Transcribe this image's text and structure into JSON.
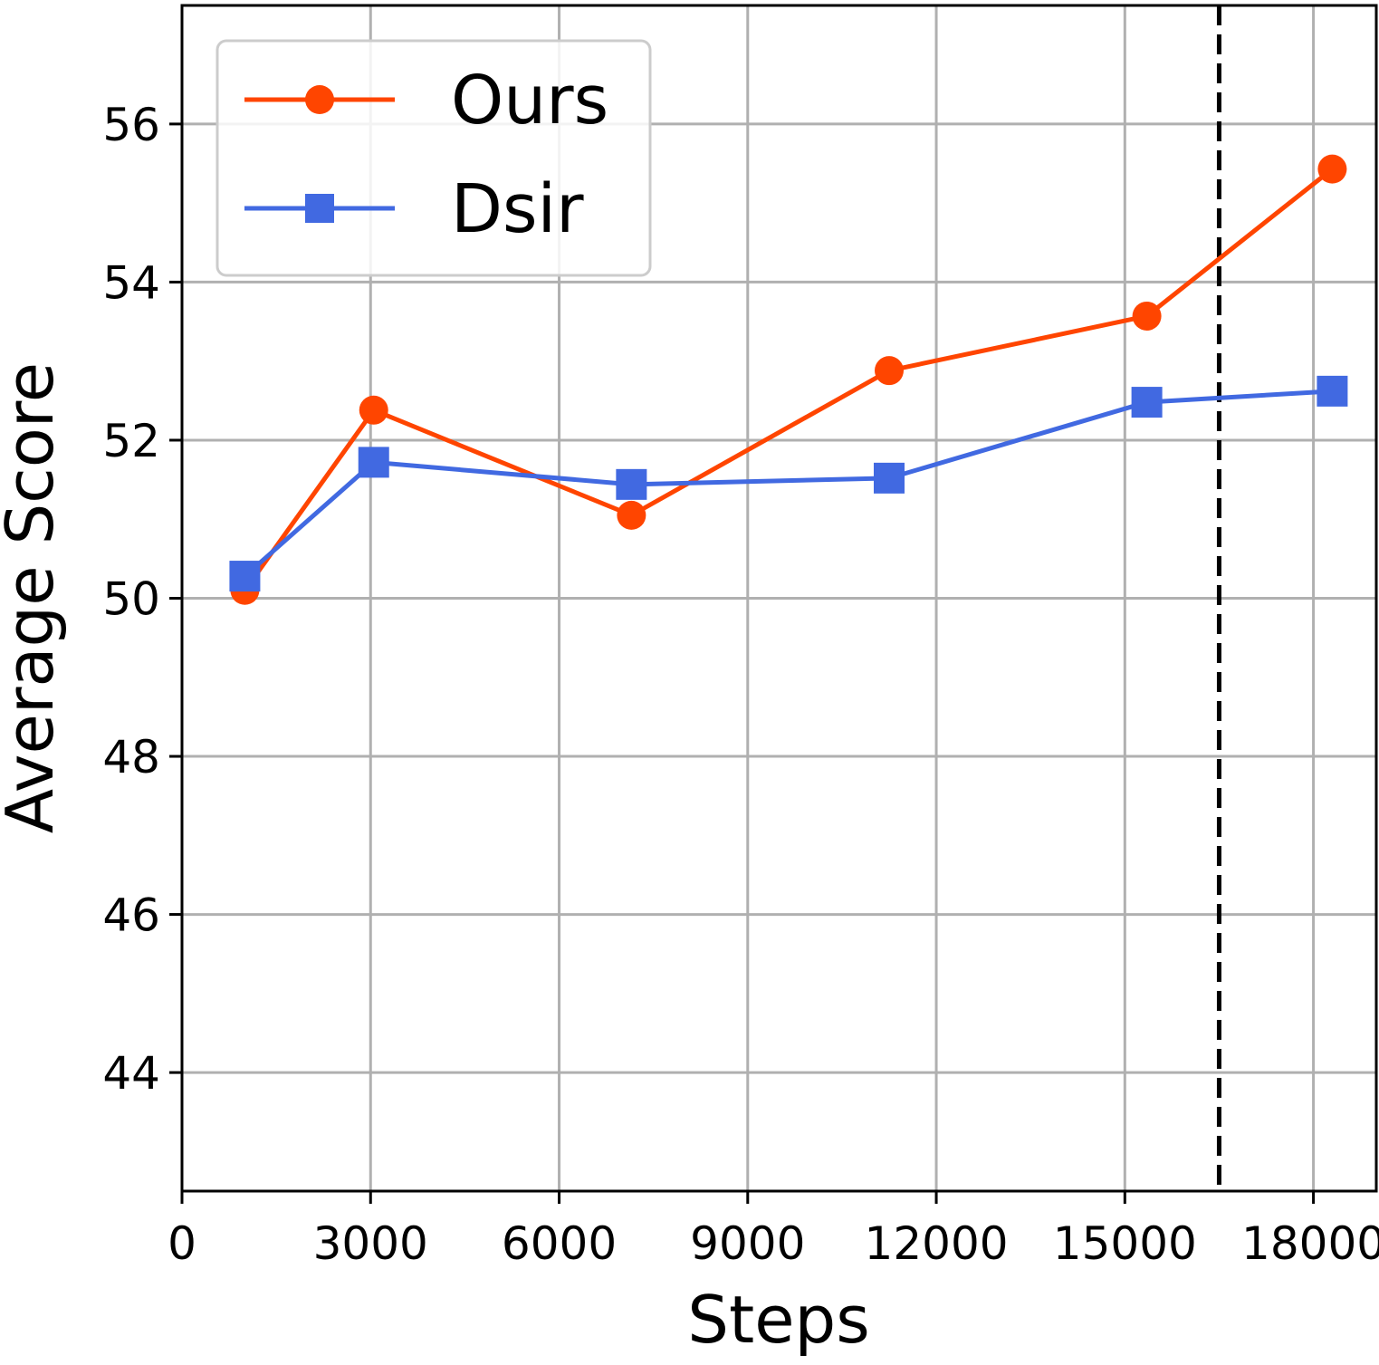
{
  "chart_data": {
    "type": "line",
    "xlabel": "Steps",
    "ylabel": "Average Score",
    "xlim": [
      0,
      19000
    ],
    "ylim": [
      42.5,
      57.5
    ],
    "x_ticks": [
      0,
      3000,
      6000,
      9000,
      12000,
      15000,
      18000
    ],
    "x_tick_labels": [
      "0",
      "3000",
      "6000",
      "9000",
      "12000",
      "15000",
      "18000"
    ],
    "y_ticks": [
      44,
      46,
      48,
      50,
      52,
      54,
      56
    ],
    "y_tick_labels": [
      "44",
      "46",
      "48",
      "50",
      "52",
      "54",
      "56"
    ],
    "grid": true,
    "legend": {
      "position": "top-left",
      "entries": [
        "Ours",
        "Dsir"
      ]
    },
    "vertical_line": {
      "x": 16500,
      "style": "dashed",
      "color": "#000000"
    },
    "series": [
      {
        "name": "Ours",
        "color": "#FF4500",
        "marker": "circle",
        "x": [
          1000,
          3050,
          7150,
          11250,
          15350,
          18300
        ],
        "y": [
          50.1,
          52.38,
          51.05,
          52.88,
          53.57,
          55.43
        ]
      },
      {
        "name": "Dsir",
        "color": "#4169E1",
        "marker": "square",
        "x": [
          1000,
          3050,
          7150,
          11250,
          15350,
          18300
        ],
        "y": [
          50.28,
          51.72,
          51.44,
          51.52,
          52.48,
          52.62
        ]
      }
    ]
  }
}
